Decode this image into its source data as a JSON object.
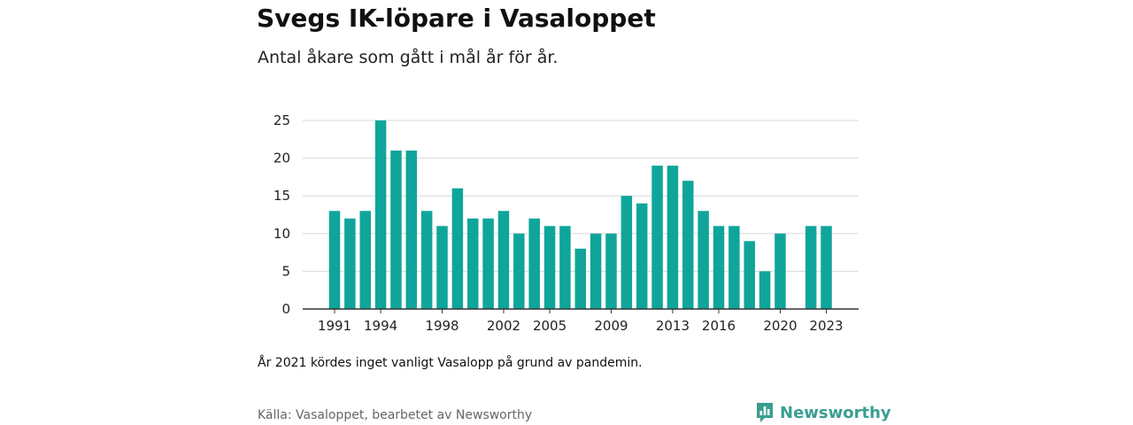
{
  "header": {
    "title": "Svegs IK-löpare i Vasaloppet",
    "subtitle": "Antal åkare som gått i mål år för år."
  },
  "footer": {
    "note": "År 2021 kördes inget vanligt Vasalopp på grund av pandemin.",
    "source": "Källa: Vasaloppet, bearbetet av Newsworthy",
    "brand": "Newsworthy",
    "brand_icon": "newsworthy-logo-icon"
  },
  "colors": {
    "bar": "#0fa59b",
    "grid": "#d9d9d9",
    "axis": "#333333",
    "brand": "#3a9e91"
  },
  "chart_data": {
    "type": "bar",
    "title": "Svegs IK-löpare i Vasaloppet",
    "subtitle": "Antal åkare som gått i mål år för år.",
    "xlabel": "",
    "ylabel": "",
    "categories": [
      1991,
      1992,
      1993,
      1994,
      1995,
      1996,
      1997,
      1998,
      1999,
      2000,
      2001,
      2002,
      2003,
      2004,
      2005,
      2006,
      2007,
      2008,
      2009,
      2010,
      2011,
      2012,
      2013,
      2014,
      2015,
      2016,
      2017,
      2018,
      2019,
      2020,
      2021,
      2022,
      2023
    ],
    "values": [
      13,
      12,
      13,
      25,
      21,
      21,
      13,
      11,
      16,
      12,
      12,
      13,
      10,
      12,
      11,
      11,
      8,
      10,
      10,
      15,
      14,
      19,
      19,
      17,
      13,
      11,
      11,
      9,
      5,
      10,
      null,
      11,
      11
    ],
    "x_ticks": [
      1991,
      1994,
      1998,
      2002,
      2005,
      2009,
      2013,
      2016,
      2020,
      2023
    ],
    "y_ticks": [
      0,
      5,
      10,
      15,
      20,
      25
    ],
    "ylim": [
      0,
      25
    ],
    "grid": true,
    "legend": "none"
  }
}
